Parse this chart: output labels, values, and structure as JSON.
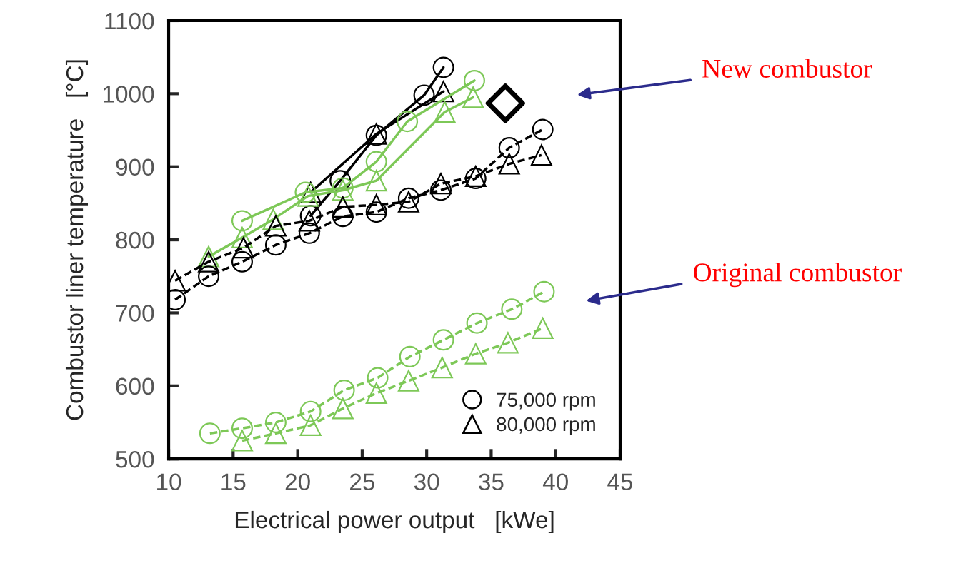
{
  "chart_data": {
    "type": "line",
    "xlabel": "Electrical power output   [kWe]",
    "ylabel": "Combustor liner temperature   [°C]",
    "xlim": [
      10,
      45
    ],
    "xticks": [
      10,
      15,
      20,
      25,
      30,
      35,
      40,
      45
    ],
    "ylim": [
      500,
      1100
    ],
    "yticks": [
      500,
      600,
      700,
      800,
      900,
      1000,
      1100
    ],
    "grid": false,
    "legend": "bottom right",
    "series": [
      {
        "color": "#000000",
        "marker": "circle",
        "line_style": "solid",
        "x": [
          21.0,
          23.3,
          26.1,
          29.8,
          31.3
        ],
        "values": [
          833,
          881,
          943,
          998,
          1036
        ]
      },
      {
        "color": "#000000",
        "marker": "triangle",
        "line_style": "solid",
        "x": [
          21.0,
          26.1,
          31.3
        ],
        "values": [
          865,
          945,
          1003
        ]
      },
      {
        "color": "#7dc857",
        "marker": "circle",
        "line_style": "solid",
        "x": [
          15.7,
          20.6,
          23.5,
          26.1,
          28.5,
          33.7
        ],
        "values": [
          826,
          865,
          871,
          907,
          962,
          1018
        ]
      },
      {
        "color": "#7dc857",
        "marker": "triangle",
        "line_style": "solid",
        "x": [
          13.1,
          15.7,
          18.1,
          20.8,
          23.5,
          26.1,
          31.4,
          33.6
        ],
        "values": [
          777,
          803,
          828,
          860,
          868,
          881,
          975,
          995
        ]
      },
      {
        "name": "75,000 rpm",
        "color": "#000000",
        "marker": "circle",
        "line_style": "dashed",
        "x": [
          10.5,
          13.1,
          15.7,
          18.3,
          20.9,
          23.5,
          26.1,
          28.6,
          31.1,
          33.8,
          36.4,
          39.0
        ],
        "values": [
          718,
          750,
          770,
          793,
          809,
          832,
          838,
          857,
          868,
          884,
          926,
          951
        ]
      },
      {
        "name": "80,000 rpm",
        "color": "#000000",
        "marker": "triangle",
        "line_style": "dashed",
        "x": [
          10.5,
          13.1,
          15.8,
          18.3,
          20.9,
          23.5,
          26.1,
          28.6,
          31.1,
          33.8,
          36.4,
          38.9
        ],
        "values": [
          744,
          770,
          789,
          819,
          826,
          845,
          848,
          852,
          877,
          887,
          904,
          916
        ]
      },
      {
        "color": "#7dc857",
        "marker": "circle",
        "line_style": "dashed",
        "x": [
          13.2,
          15.7,
          18.3,
          21.0,
          23.6,
          26.2,
          28.7,
          31.3,
          33.9,
          36.6,
          39.1
        ],
        "values": [
          535,
          542,
          550,
          565,
          594,
          611,
          640,
          663,
          686,
          705,
          729
        ]
      },
      {
        "color": "#7dc857",
        "marker": "triangle",
        "line_style": "dashed",
        "x": [
          15.7,
          18.3,
          21.0,
          23.5,
          26.1,
          28.6,
          31.2,
          33.8,
          36.3,
          39.0
        ],
        "values": [
          525,
          535,
          546,
          569,
          590,
          607,
          625,
          644,
          659,
          679
        ]
      },
      {
        "type": "scatter",
        "color": "#000000",
        "marker": "diamond",
        "x": [
          36.1
        ],
        "values": [
          987
        ]
      }
    ],
    "annotations": [
      "New combustor",
      "Original combustor"
    ]
  }
}
